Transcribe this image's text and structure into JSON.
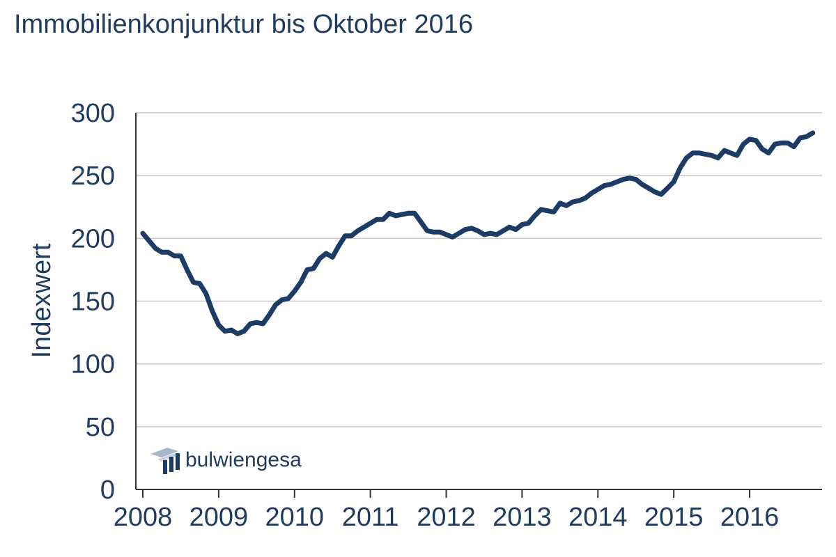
{
  "chart_data": {
    "type": "line",
    "title": "Immobilienkonjunktur bis Oktober 2016",
    "xlabel": "",
    "ylabel": "Indexwert",
    "ylim": [
      0,
      300
    ],
    "yticks": [
      "0",
      "50",
      "100",
      "150",
      "200",
      "250",
      "300"
    ],
    "xlim": [
      2008,
      2016.83
    ],
    "xticks": [
      "2008",
      "2009",
      "2010",
      "2011",
      "2012",
      "2013",
      "2014",
      "2015",
      "2016"
    ],
    "grid": "horizontal",
    "line_color": "#1c3c66",
    "grid_color": "#c8c8c8",
    "series": [
      {
        "x": [
          2008.0,
          2008.083,
          2008.167,
          2008.25,
          2008.333,
          2008.417,
          2008.5,
          2008.583,
          2008.667,
          2008.75,
          2008.833,
          2008.917,
          2009.0,
          2009.083,
          2009.167,
          2009.25,
          2009.333,
          2009.417,
          2009.5,
          2009.583,
          2009.667,
          2009.75,
          2009.833,
          2009.917,
          2010.0,
          2010.083,
          2010.167,
          2010.25,
          2010.333,
          2010.417,
          2010.5,
          2010.583,
          2010.667,
          2010.75,
          2010.833,
          2010.917,
          2011.0,
          2011.083,
          2011.167,
          2011.25,
          2011.333,
          2011.417,
          2011.5,
          2011.583,
          2011.667,
          2011.75,
          2011.833,
          2011.917,
          2012.0,
          2012.083,
          2012.167,
          2012.25,
          2012.333,
          2012.417,
          2012.5,
          2012.583,
          2012.667,
          2012.75,
          2012.833,
          2012.917,
          2013.0,
          2013.083,
          2013.167,
          2013.25,
          2013.333,
          2013.417,
          2013.5,
          2013.583,
          2013.667,
          2013.75,
          2013.833,
          2013.917,
          2014.0,
          2014.083,
          2014.167,
          2014.25,
          2014.333,
          2014.417,
          2014.5,
          2014.583,
          2014.667,
          2014.75,
          2014.833,
          2014.917,
          2015.0,
          2015.083,
          2015.167,
          2015.25,
          2015.333,
          2015.417,
          2015.5,
          2015.583,
          2015.667,
          2015.75,
          2015.833,
          2015.917,
          2016.0,
          2016.083,
          2016.167,
          2016.25,
          2016.333,
          2016.417,
          2016.5,
          2016.583,
          2016.667,
          2016.75,
          2016.833
        ],
        "values": [
          204,
          198,
          192,
          189,
          189,
          186,
          186,
          175,
          165,
          164,
          156,
          142,
          131,
          126,
          127,
          124,
          126,
          132,
          133,
          132,
          139,
          147,
          151,
          152,
          158,
          165,
          175,
          176,
          184,
          188,
          185,
          194,
          202,
          202,
          206,
          209,
          212,
          215,
          215,
          220,
          218,
          219,
          220,
          220,
          213,
          206,
          205,
          205,
          203,
          201,
          204,
          207,
          208,
          206,
          203,
          204,
          203,
          206,
          209,
          207,
          211,
          212,
          218,
          223,
          222,
          221,
          228,
          226,
          229,
          230,
          232,
          236,
          239,
          242,
          243,
          245,
          247,
          248,
          247,
          243,
          240,
          237,
          235,
          240,
          245,
          256,
          264,
          268,
          268,
          267,
          266,
          264,
          270,
          268,
          266,
          275,
          279,
          278,
          271,
          268,
          275,
          276,
          276,
          273,
          280,
          281,
          284
        ]
      }
    ]
  },
  "logo": {
    "text": "bulwiengesa",
    "icon": "bulwiengesa-logo-mark",
    "color_dark": "#1c3c66",
    "color_light": "#a9b7cb"
  }
}
